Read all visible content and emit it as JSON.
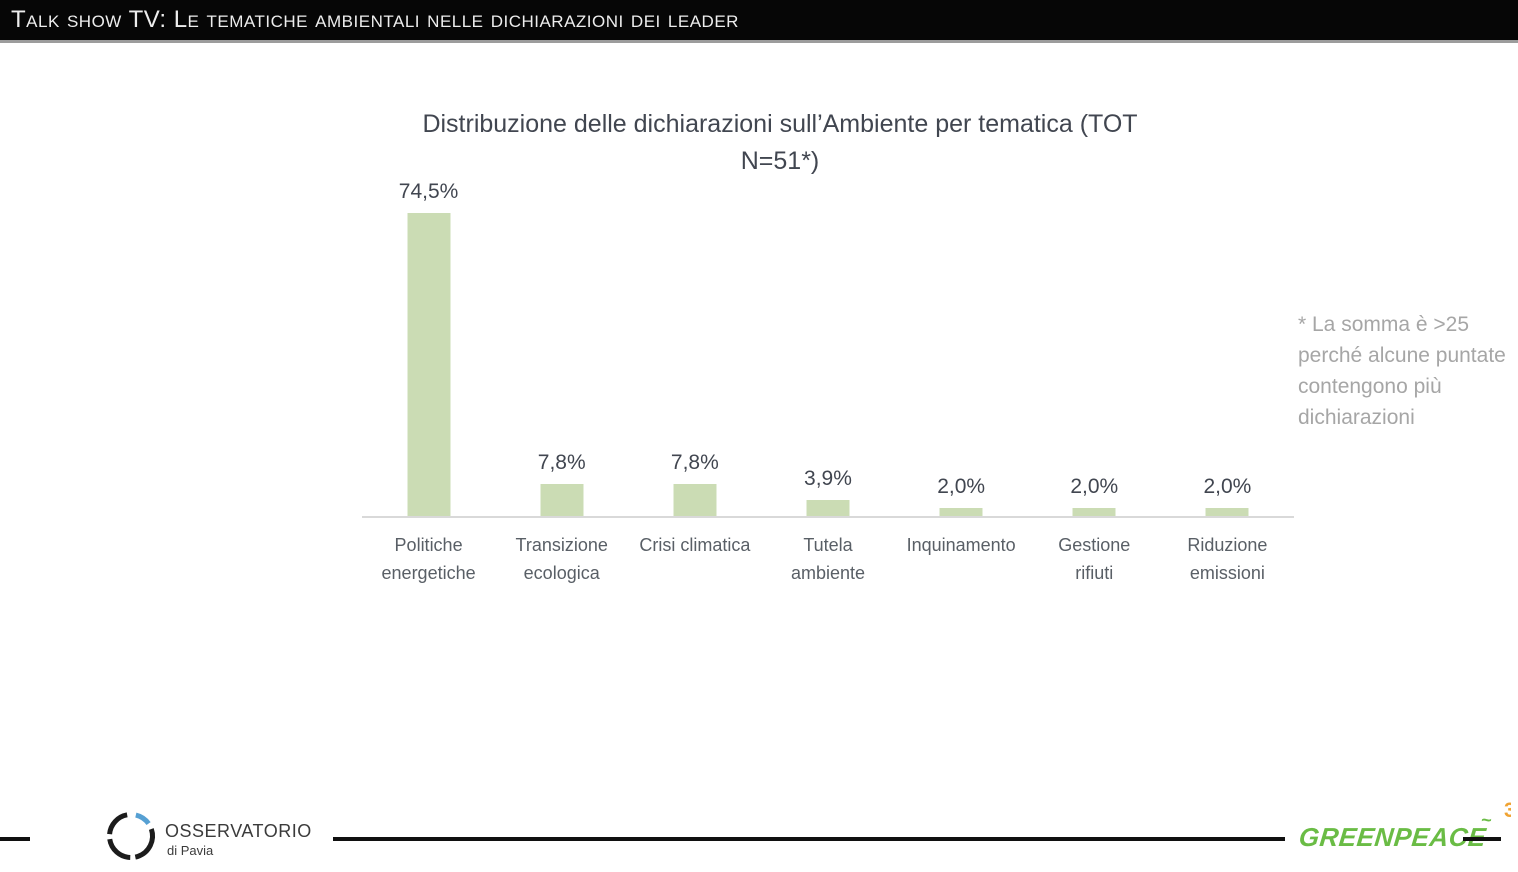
{
  "header": {
    "title": "Talk show TV: Le tematiche ambientali nelle dichiarazioni dei leader"
  },
  "chart_data": {
    "type": "bar",
    "title": "Distribuzione delle dichiarazioni sull’Ambiente  per tematica (TOT N=51*)",
    "title_lines": [
      "Distribuzione delle dichiarazioni sull’Ambiente  per tematica (TOT",
      "N=51*)"
    ],
    "categories": [
      "Politiche energetiche",
      "Transizione ecologica",
      "Crisi climatica",
      "Tutela ambiente",
      "Inquinamento",
      "Gestione rifiuti",
      "Riduzione emissioni"
    ],
    "category_label_lines": [
      [
        "Politiche",
        "energetiche"
      ],
      [
        "Transizione",
        "ecologica"
      ],
      [
        "Crisi climatica"
      ],
      [
        "Tutela",
        "ambiente"
      ],
      [
        "Inquinamento"
      ],
      [
        "Gestione",
        "rifiuti"
      ],
      [
        "Riduzione",
        "emissioni"
      ]
    ],
    "values": [
      74.5,
      7.8,
      7.8,
      3.9,
      2.0,
      2.0,
      2.0
    ],
    "value_labels": [
      "74,5%",
      "7,8%",
      "7,8%",
      "3,9%",
      "2,0%",
      "2,0%",
      "2,0%"
    ],
    "xlabel": "",
    "ylabel": "",
    "ylim": [
      0,
      80
    ],
    "grid": false,
    "legend": false,
    "bar_color": "#cbdcb4",
    "axis_line_color": "#d9d9d9",
    "value_label_color": "#414650",
    "category_label_color": "#595f66",
    "title_color": "#414650"
  },
  "annotation": {
    "text": "* La somma è >25 perché alcune puntate contengono più dichiarazioni",
    "color": "#a6a6a6"
  },
  "footer": {
    "osservatorio_name": "OSSERVATORIO",
    "osservatorio_subtitle": "di Pavia",
    "greenpeace_label": "GREENPEACE",
    "greenpeace_color": "#6abc45",
    "page_number_fragment": "3"
  }
}
